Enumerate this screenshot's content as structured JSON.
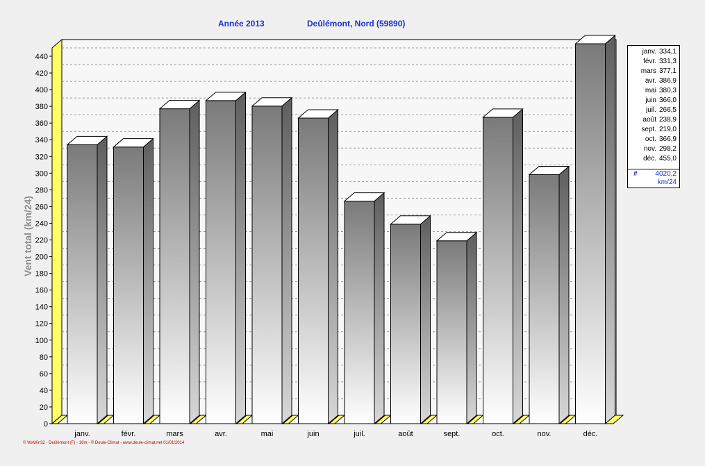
{
  "title_year": "Année  2013",
  "title_station": "Deûlémont, Nord (59890)",
  "footer": "© WxWin32 - Deûlémont (F) - 16m - © Deule-Climat - www.deule-climat.net  01/01/2014",
  "colors": {
    "title": "#1a2fd0",
    "floor": "#ffff66",
    "bar_top": "#7a7a7a",
    "bar_bottom": "#ffffff"
  },
  "chart_data": {
    "type": "bar",
    "ylabel": "Vent total  (km/24)",
    "ylim": [
      0,
      450
    ],
    "yticks": [
      0,
      20,
      40,
      60,
      80,
      100,
      120,
      140,
      160,
      180,
      200,
      220,
      240,
      260,
      280,
      300,
      320,
      340,
      360,
      380,
      400,
      420,
      440
    ],
    "grid": true,
    "categories": [
      "janv.",
      "févr.",
      "mars",
      "avr.",
      "mai",
      "juin",
      "juil.",
      "août",
      "sept.",
      "oct.",
      "nov.",
      "déc."
    ],
    "values": [
      334.1,
      331.3,
      377.1,
      386.9,
      380.3,
      366.0,
      266.5,
      238.9,
      219.0,
      366.9,
      298.2,
      455.0
    ],
    "legend_values": [
      "334,1",
      "331,3",
      "377,1",
      "386,9",
      "380,3",
      "366,0",
      "266,5",
      "238,9",
      "219,0",
      "366,9",
      "298,2",
      "455,0"
    ],
    "legend_placement": "right",
    "total_symbol": "#",
    "total": "4020,2",
    "total_unit": "km/24"
  }
}
